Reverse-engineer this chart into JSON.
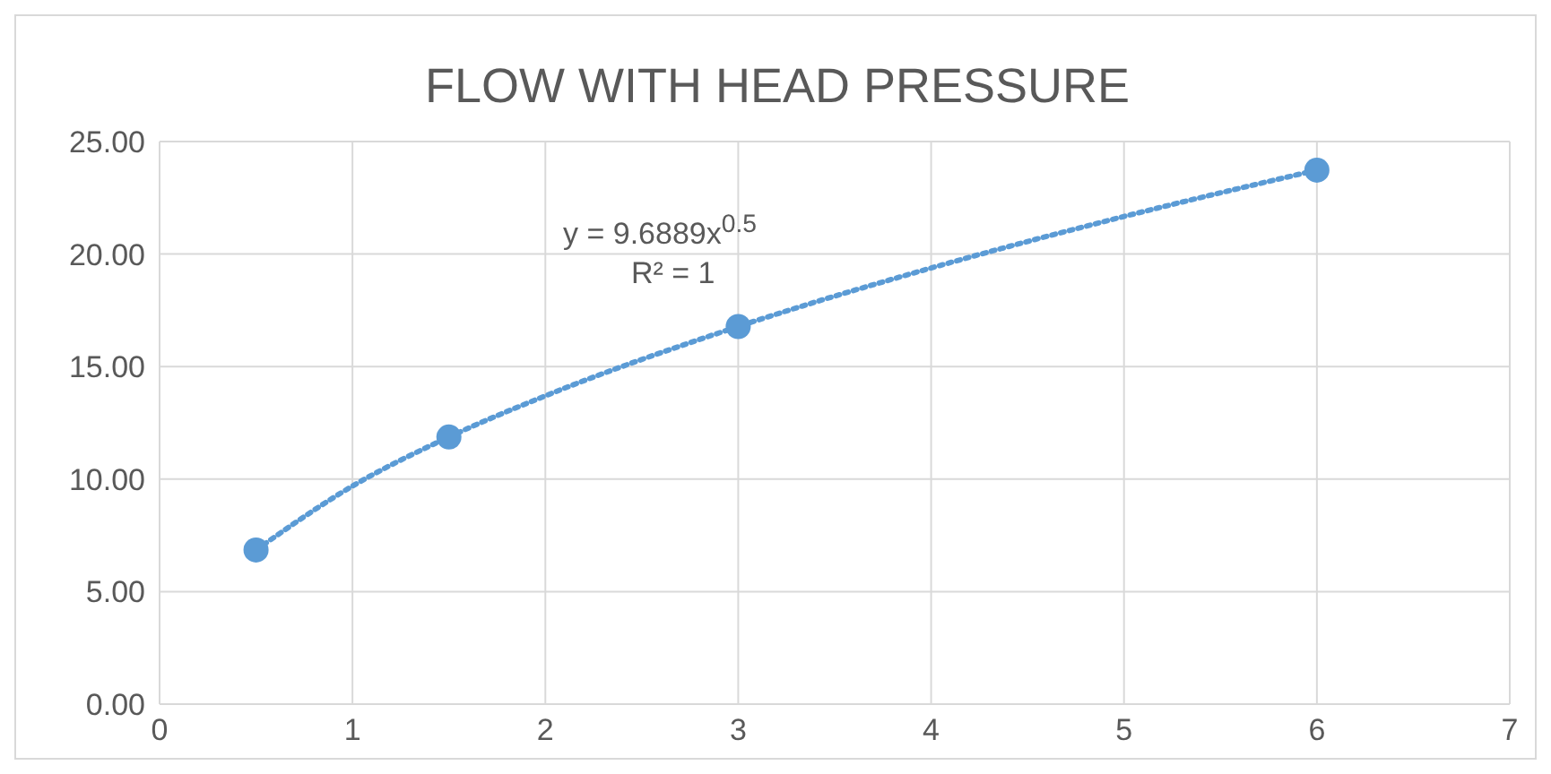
{
  "chart_data": {
    "type": "scatter",
    "title": "FLOW WITH HEAD PRESSURE",
    "xlim": [
      0,
      7
    ],
    "xticks": [
      0,
      1,
      2,
      3,
      4,
      5,
      6,
      7
    ],
    "ylim": [
      0,
      25
    ],
    "yticks": [
      {
        "value": 0,
        "label": "0.00"
      },
      {
        "value": 5,
        "label": "5.00"
      },
      {
        "value": 10,
        "label": "10.00"
      },
      {
        "value": 15,
        "label": "15.00"
      },
      {
        "value": 20,
        "label": "20.00"
      },
      {
        "value": 25,
        "label": "25.00"
      }
    ],
    "grid": true,
    "annotations": [
      "y = 9.6889x$^{0.5}$",
      "R² = 1"
    ],
    "series": [
      {
        "type": "line",
        "color": "#5b9bd5",
        "line_style": "dotted",
        "marker": "none",
        "x": [
          0.5,
          1,
          1.5,
          2,
          3,
          4,
          5,
          6
        ],
        "values": [
          6.85,
          9.69,
          11.87,
          13.7,
          16.78,
          19.38,
          21.67,
          23.73
        ]
      },
      {
        "color": "#5b9bd5",
        "marker": "circle",
        "x": [
          0.5,
          1.5,
          3,
          6
        ],
        "values": [
          6.85,
          11.87,
          16.78,
          23.73
        ]
      }
    ]
  }
}
